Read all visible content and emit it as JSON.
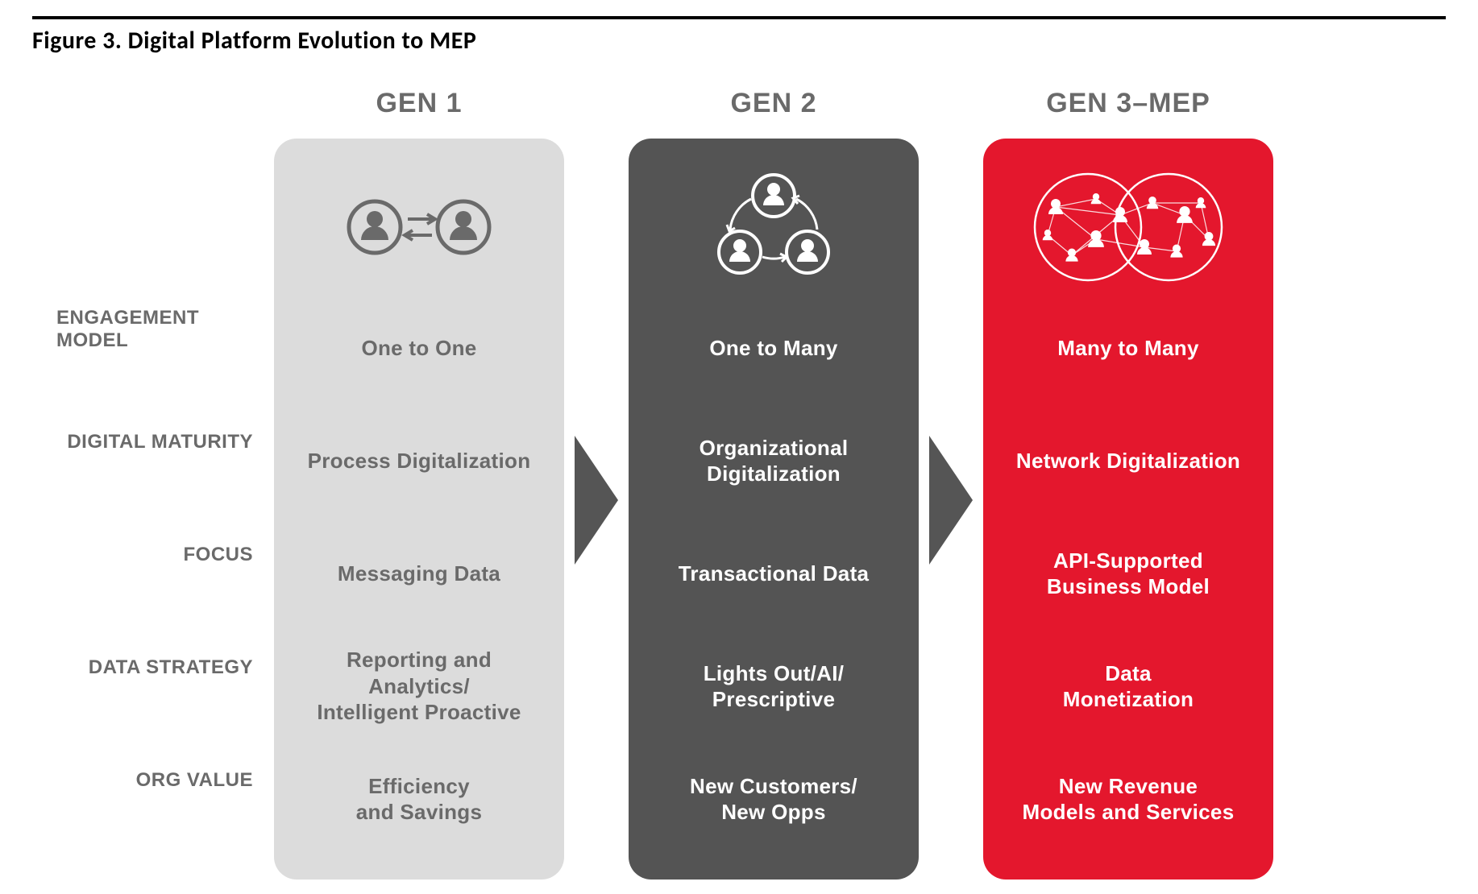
{
  "figure_title": "Figure 3. Digital Platform Evolution to MEP",
  "colors": {
    "title_border": "#000000",
    "label_text": "#6a6a6a",
    "header_text": "#6a6a6a",
    "arrow": "#555555",
    "gen1_bg": "#dcdcdc",
    "gen1_text": "#6a6a6a",
    "gen1_icon": "#6a6a6a",
    "gen2_bg": "#545454",
    "gen2_text": "#ffffff",
    "gen2_icon": "#ffffff",
    "gen3_bg": "#e4172d",
    "gen3_text": "#ffffff",
    "gen3_icon": "#ffffff"
  },
  "row_labels": [
    "ENGAGEMENT MODEL",
    "DIGITAL MATURITY",
    "FOCUS",
    "DATA STRATEGY",
    "ORG VALUE"
  ],
  "columns": [
    {
      "id": "gen1",
      "header": "GEN 1",
      "icon": "one-to-one",
      "cells": [
        "One to One",
        "Process Digitalization",
        "Messaging Data",
        "Reporting and Analytics/\nIntelligent Proactive",
        "Efficiency\nand Savings"
      ]
    },
    {
      "id": "gen2",
      "header": "GEN 2",
      "icon": "one-to-many",
      "cells": [
        "One to Many",
        "Organizational\nDigitalization",
        "Transactional Data",
        "Lights Out/AI/\nPrescriptive",
        "New Customers/\nNew Opps"
      ]
    },
    {
      "id": "gen3",
      "header": "GEN 3–MEP",
      "icon": "many-to-many",
      "cells": [
        "Many to Many",
        "Network Digitalization",
        "API-Supported\nBusiness Model",
        "Data\nMonetization",
        "New Revenue\nModels and Services"
      ]
    }
  ]
}
